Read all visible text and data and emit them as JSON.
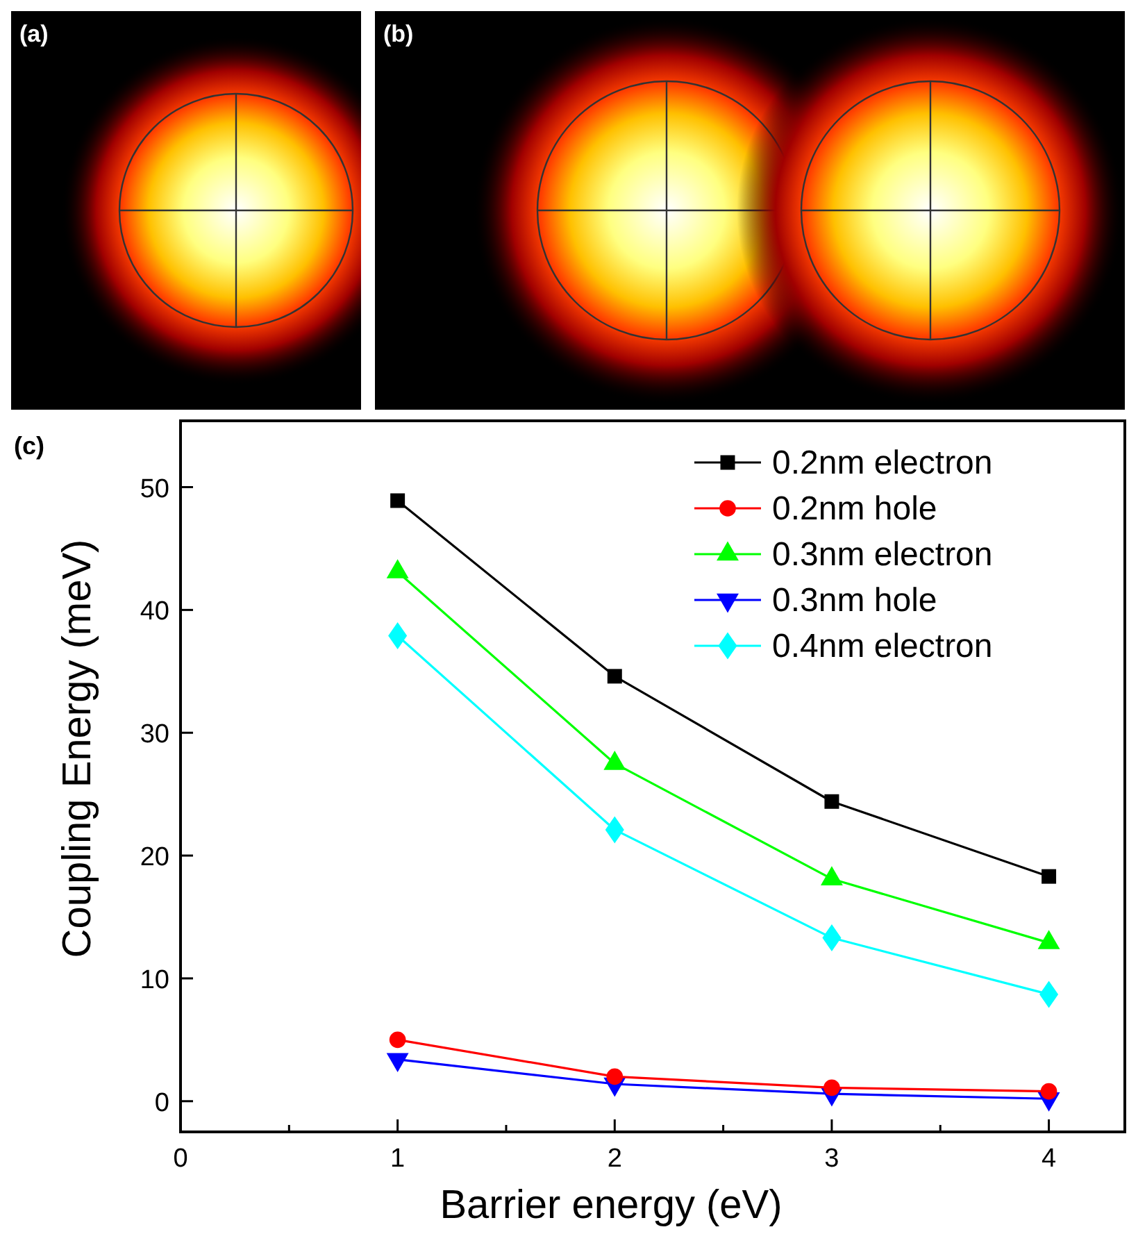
{
  "chart_data": [
    {
      "type": "other",
      "title": "(a)"
    },
    {
      "type": "other",
      "title": "(b)"
    },
    {
      "type": "line",
      "title": "(c)",
      "xlabel": "Barrier energy (eV)",
      "ylabel": "Coupling Energy (meV)",
      "x": [
        1,
        2,
        3,
        4
      ],
      "series": [
        {
          "name": "0.2nm electron",
          "color": "#000000",
          "marker": "square",
          "values": [
            48.9,
            34.6,
            24.4,
            18.3
          ]
        },
        {
          "name": "0.2nm hole",
          "color": "#ff0000",
          "marker": "circle",
          "values": [
            5.0,
            2.0,
            1.1,
            0.8
          ]
        },
        {
          "name": "0.3nm electron",
          "color": "#00ff00",
          "marker": "triangle",
          "values": [
            43.1,
            27.5,
            18.1,
            12.9
          ]
        },
        {
          "name": "0.3nm hole",
          "color": "#0000ff",
          "marker": "triangle-down",
          "values": [
            3.4,
            1.4,
            0.6,
            0.2
          ]
        },
        {
          "name": "0.4nm electron",
          "color": "#00ffff",
          "marker": "diamond",
          "values": [
            37.9,
            22.1,
            13.3,
            8.7
          ]
        }
      ],
      "xlim": [
        0,
        4.35
      ],
      "ylim": [
        -2.5,
        55.4
      ],
      "xticks": [
        0,
        {
          "value": 0.5,
          "label": null
        },
        1,
        {
          "value": 1.5,
          "label": null
        },
        2,
        {
          "value": 2.5,
          "label": null
        },
        3,
        {
          "value": 3.5,
          "label": null
        },
        4
      ],
      "yticks": [
        0,
        10,
        20,
        30,
        40,
        50
      ],
      "grid": false,
      "legend": "top right"
    }
  ]
}
